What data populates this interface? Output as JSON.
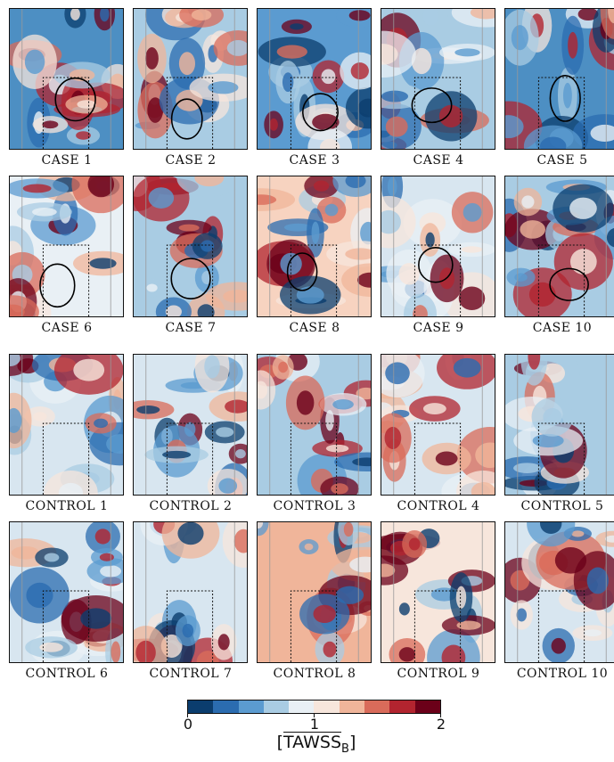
{
  "panels": [
    {
      "label": "CASE 1",
      "base": "#4d8fc3"
    },
    {
      "label": "CASE 2",
      "base": "#a9cce3"
    },
    {
      "label": "CASE 3",
      "base": "#5b9bd0"
    },
    {
      "label": "CASE 4",
      "base": "#a9cce3"
    },
    {
      "label": "CASE 5",
      "base": "#4d8fc3"
    },
    {
      "label": "CASE 6",
      "base": "#e9f0f5"
    },
    {
      "label": "CASE 7",
      "base": "#a9cce3"
    },
    {
      "label": "CASE 8",
      "base": "#f7d3c0"
    },
    {
      "label": "CASE 9",
      "base": "#d8e6f0"
    },
    {
      "label": "CASE 10",
      "base": "#a9cce3"
    },
    {
      "label": "CONTROL 1",
      "base": "#d8e6f0"
    },
    {
      "label": "CONTROL 2",
      "base": "#d8e6f0"
    },
    {
      "label": "CONTROL 3",
      "base": "#a9cce3"
    },
    {
      "label": "CONTROL 4",
      "base": "#d8e6f0"
    },
    {
      "label": "CONTROL 5",
      "base": "#a9cce3"
    },
    {
      "label": "CONTROL 6",
      "base": "#d8e6f0"
    },
    {
      "label": "CONTROL 7",
      "base": "#d8e6f0"
    },
    {
      "label": "CONTROL 8",
      "base": "#f0b59a"
    },
    {
      "label": "CONTROL 9",
      "base": "#f7e6dc"
    },
    {
      "label": "CONTROL 10",
      "base": "#d8e6f0"
    }
  ],
  "colorbar": {
    "ticks": [
      "0",
      "1",
      "2"
    ],
    "title_bracket_open": "[",
    "title_main": "TAWSS",
    "title_sub": "B",
    "title_bracket_close": "]",
    "colors": [
      "#0b3d6e",
      "#2b6cb0",
      "#5b9bd0",
      "#a9cce3",
      "#e9f0f5",
      "#f7e6dc",
      "#f0b59a",
      "#d96b5a",
      "#b2242f",
      "#6b0019"
    ]
  }
}
